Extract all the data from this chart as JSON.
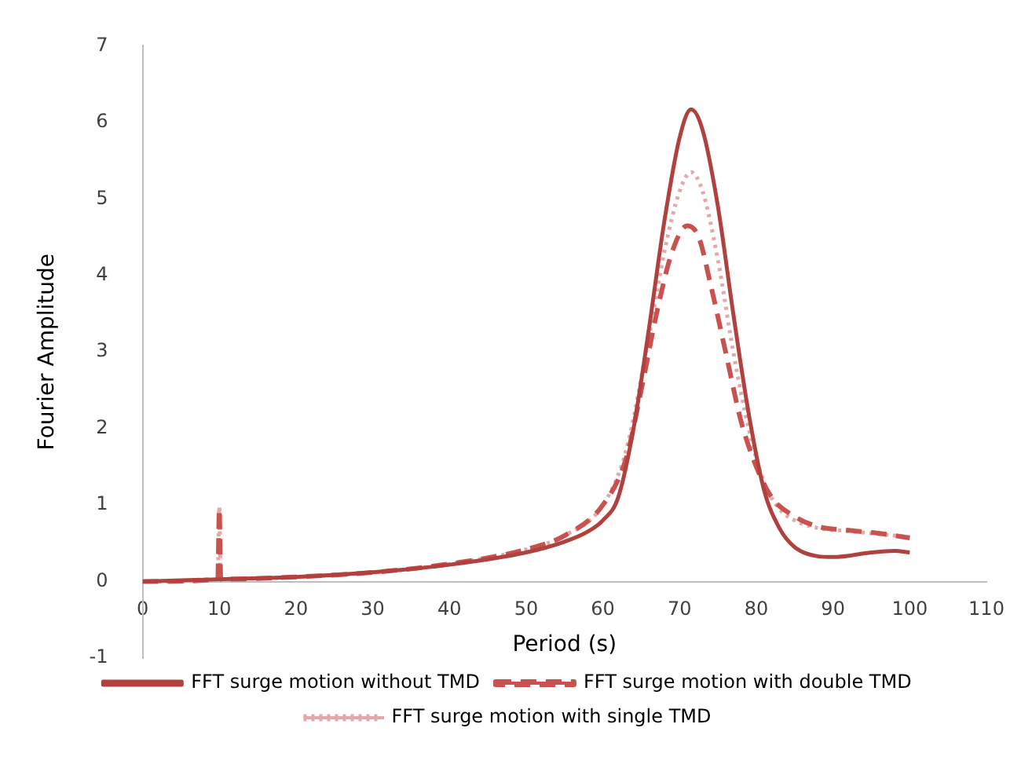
{
  "chart_data": {
    "type": "line",
    "xlabel": "Period (s)",
    "ylabel": "Fourier Amplitude",
    "xlim": [
      0,
      110
    ],
    "xticks": [
      0,
      10,
      20,
      30,
      40,
      50,
      60,
      70,
      80,
      90,
      100,
      110
    ],
    "ylim": [
      -1,
      7
    ],
    "yticks": [
      -1,
      0,
      1,
      2,
      3,
      4,
      5,
      6,
      7
    ],
    "grid": false,
    "legend": "bottom",
    "marker": "none",
    "series": [
      {
        "name": "FFT surge motion without TMD",
        "color": "#b0413e",
        "line_style": "solid",
        "x": [
          0,
          10,
          20,
          30,
          40,
          50,
          55,
          58,
          60,
          62,
          64,
          66,
          68,
          70,
          71.5,
          73,
          75,
          77,
          79,
          81,
          83,
          85,
          88,
          90,
          95,
          98,
          100
        ],
        "values": [
          0,
          0.03,
          0.06,
          0.12,
          0.22,
          0.38,
          0.52,
          0.65,
          0.8,
          1.1,
          2.0,
          3.3,
          4.7,
          5.8,
          6.17,
          5.9,
          4.9,
          3.5,
          2.2,
          1.2,
          0.7,
          0.45,
          0.33,
          0.32,
          0.38,
          0.4,
          0.38
        ]
      },
      {
        "name": "FFT surge motion with double TMD",
        "color": "#c9524f",
        "line_style": "dashed",
        "x": [
          0,
          9.8,
          10,
          10.2,
          20,
          30,
          40,
          50,
          55,
          60,
          63,
          65,
          67,
          69,
          71,
          72.5,
          74,
          76,
          78,
          80,
          82,
          85,
          88,
          92,
          96,
          100
        ],
        "values": [
          0,
          0.03,
          0.95,
          0.03,
          0.06,
          0.12,
          0.23,
          0.42,
          0.6,
          1.0,
          1.6,
          2.5,
          3.5,
          4.3,
          4.65,
          4.5,
          3.9,
          3.0,
          2.1,
          1.5,
          1.1,
          0.85,
          0.72,
          0.67,
          0.63,
          0.57
        ]
      },
      {
        "name": "FFT surge motion with single TMD",
        "color": "#e3a9a8",
        "line_style": "dotted",
        "x": [
          0,
          9.8,
          10,
          10.2,
          20,
          30,
          40,
          50,
          55,
          60,
          63,
          66,
          68,
          70,
          71.5,
          73,
          75,
          77,
          79,
          81,
          83,
          85,
          88,
          92,
          96,
          100
        ],
        "values": [
          0,
          0.03,
          0.98,
          0.03,
          0.06,
          0.12,
          0.23,
          0.42,
          0.6,
          1.0,
          1.7,
          3.2,
          4.3,
          5.1,
          5.35,
          5.1,
          4.2,
          3.0,
          2.0,
          1.3,
          0.95,
          0.8,
          0.7,
          0.66,
          0.62,
          0.58
        ]
      }
    ]
  }
}
